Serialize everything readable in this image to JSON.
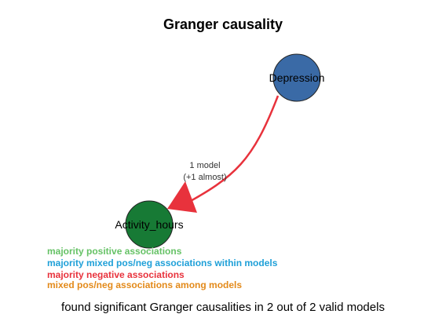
{
  "title": "Granger causality",
  "nodes": [
    {
      "id": "depression",
      "label": "Depression",
      "color": "#3a6aa6"
    },
    {
      "id": "activity_hours",
      "label": "Activity_hours",
      "color": "#177a35"
    }
  ],
  "edges": [
    {
      "from": "depression",
      "to": "activity_hours",
      "color": "#e8323c",
      "label_line1": "1 model",
      "label_line2": "(+1 almost)"
    }
  ],
  "legend": [
    {
      "text": "majority positive associations",
      "color": "#66c266"
    },
    {
      "text": "majority mixed pos/neg associations within models",
      "color": "#1fa0d8"
    },
    {
      "text": "majority negative associations",
      "color": "#e8323c"
    },
    {
      "text": "mixed pos/neg associations among models",
      "color": "#e38a1a"
    }
  ],
  "footer": "found significant Granger causalities in 2 out of 2 valid models"
}
